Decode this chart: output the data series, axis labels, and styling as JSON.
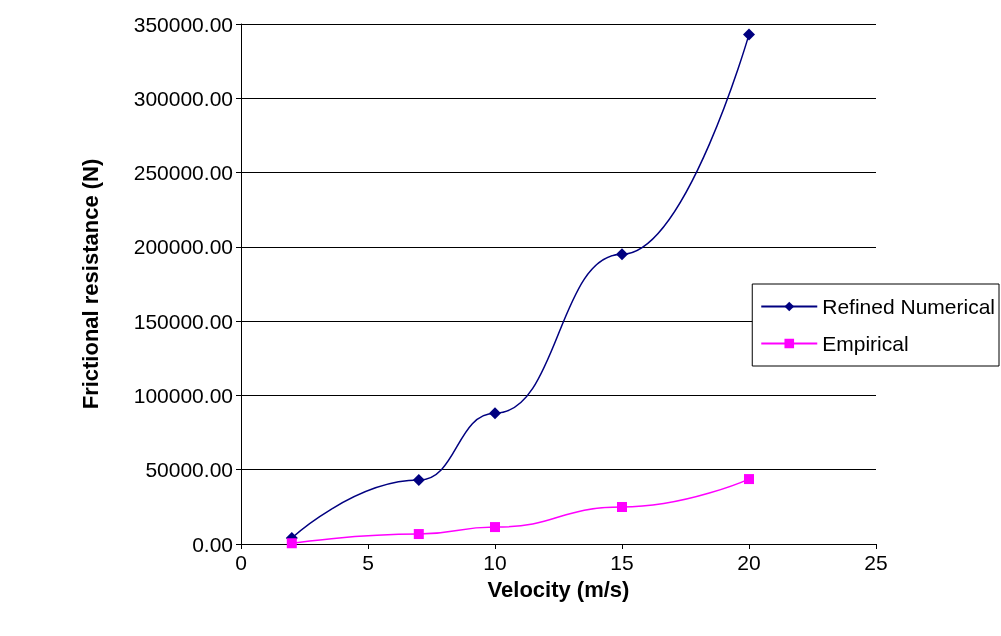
{
  "chart_data": {
    "type": "line",
    "xlabel": "Velocity (m/s)",
    "ylabel": "Frictional resistance (N)",
    "xlim": [
      0,
      25
    ],
    "xticks": [
      0,
      5,
      10,
      15,
      20,
      25
    ],
    "ylim": [
      0,
      350000
    ],
    "yticks": [
      {
        "value": 0,
        "label": "0.00"
      },
      {
        "value": 50000,
        "label": "50000.00"
      },
      {
        "value": 100000,
        "label": "100000.00"
      },
      {
        "value": 150000,
        "label": "150000.00"
      },
      {
        "value": 200000,
        "label": "200000.00"
      },
      {
        "value": 250000,
        "label": "250000.00"
      },
      {
        "value": 300000,
        "label": "300000.00"
      },
      {
        "value": 350000,
        "label": "350000.00"
      }
    ],
    "grid": "y",
    "legend": "right",
    "series": [
      {
        "name": "Refined Numerical",
        "color": "#000080",
        "marker": "diamond",
        "x": [
          2,
          7,
          10,
          15,
          20
        ],
        "values": [
          4000,
          43000,
          88000,
          195000,
          343000
        ]
      },
      {
        "name": "Empirical",
        "color": "#ff00ff",
        "marker": "square",
        "x": [
          2,
          7,
          10,
          15,
          20
        ],
        "values": [
          500,
          6700,
          11400,
          24900,
          43700
        ]
      }
    ]
  }
}
